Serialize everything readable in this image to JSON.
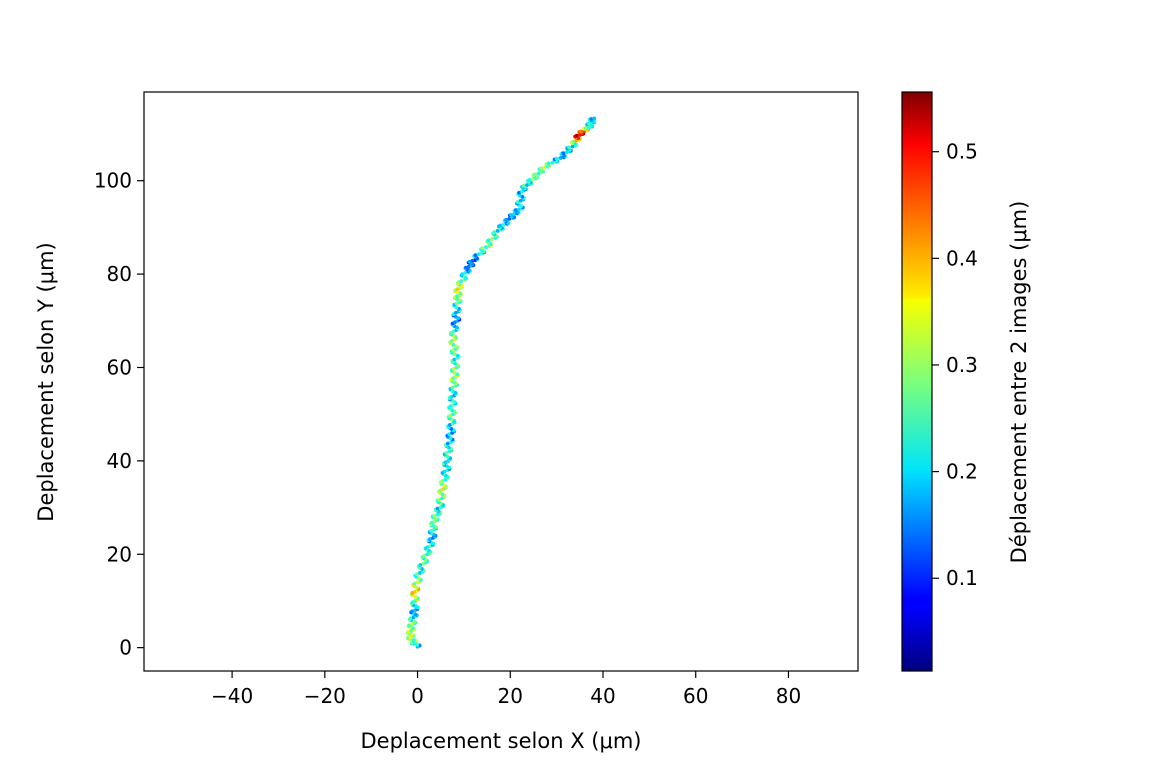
{
  "chart_data": {
    "type": "scatter",
    "title": "",
    "xlabel": "Deplacement selon X (μm)",
    "ylabel": "Deplacement selon Y (μm)",
    "xlim": [
      -59,
      95
    ],
    "ylim": [
      -5,
      119
    ],
    "xticks": [
      -40,
      -20,
      0,
      20,
      40,
      60,
      80
    ],
    "yticks": [
      0,
      20,
      40,
      60,
      80,
      100
    ],
    "grid": false,
    "legend": "none",
    "colormap": "jet",
    "colorbar": {
      "label": "Déplacement entre 2 images (μm)",
      "range": [
        0.013,
        0.556
      ],
      "ticks": [
        0.1,
        0.2,
        0.3,
        0.4,
        0.5
      ]
    },
    "trajectory_anchors": [
      [
        0.0,
        0.2
      ],
      [
        -1.6,
        2.2
      ],
      [
        -1.2,
        5.0
      ],
      [
        -0.6,
        8.0
      ],
      [
        -0.6,
        12.0
      ],
      [
        0.4,
        16.0
      ],
      [
        2.0,
        20.0
      ],
      [
        3.2,
        23.5
      ],
      [
        3.5,
        27.0
      ],
      [
        4.8,
        30.0
      ],
      [
        5.4,
        34.0
      ],
      [
        6.2,
        38.0
      ],
      [
        6.6,
        42.0
      ],
      [
        7.2,
        46.0
      ],
      [
        7.4,
        50.0
      ],
      [
        7.6,
        54.0
      ],
      [
        8.0,
        58.0
      ],
      [
        8.2,
        62.0
      ],
      [
        7.6,
        66.0
      ],
      [
        8.3,
        70.0
      ],
      [
        8.6,
        74.0
      ],
      [
        8.8,
        77.0
      ],
      [
        10.5,
        80.5
      ],
      [
        12.0,
        83.0
      ],
      [
        15.0,
        86.0
      ],
      [
        17.5,
        89.5
      ],
      [
        20.0,
        92.0
      ],
      [
        22.0,
        94.0
      ],
      [
        22.5,
        98.0
      ],
      [
        25.0,
        100.5
      ],
      [
        27.5,
        103.0
      ],
      [
        31.0,
        105.0
      ],
      [
        33.5,
        107.5
      ],
      [
        35.0,
        110.0
      ],
      [
        37.0,
        111.5
      ],
      [
        38.0,
        113.5
      ]
    ],
    "colorvalues": [
      0.18,
      0.32,
      0.28,
      0.15,
      0.38,
      0.22,
      0.26,
      0.17,
      0.29,
      0.21,
      0.33,
      0.19,
      0.24,
      0.16,
      0.27,
      0.2,
      0.3,
      0.23,
      0.31,
      0.14,
      0.25,
      0.34,
      0.18,
      0.13,
      0.28,
      0.22,
      0.16,
      0.2,
      0.19,
      0.26,
      0.29,
      0.17,
      0.21,
      0.55,
      0.24,
      0.18
    ],
    "colors": {
      "axes": "#000000",
      "background": "#ffffff"
    }
  }
}
